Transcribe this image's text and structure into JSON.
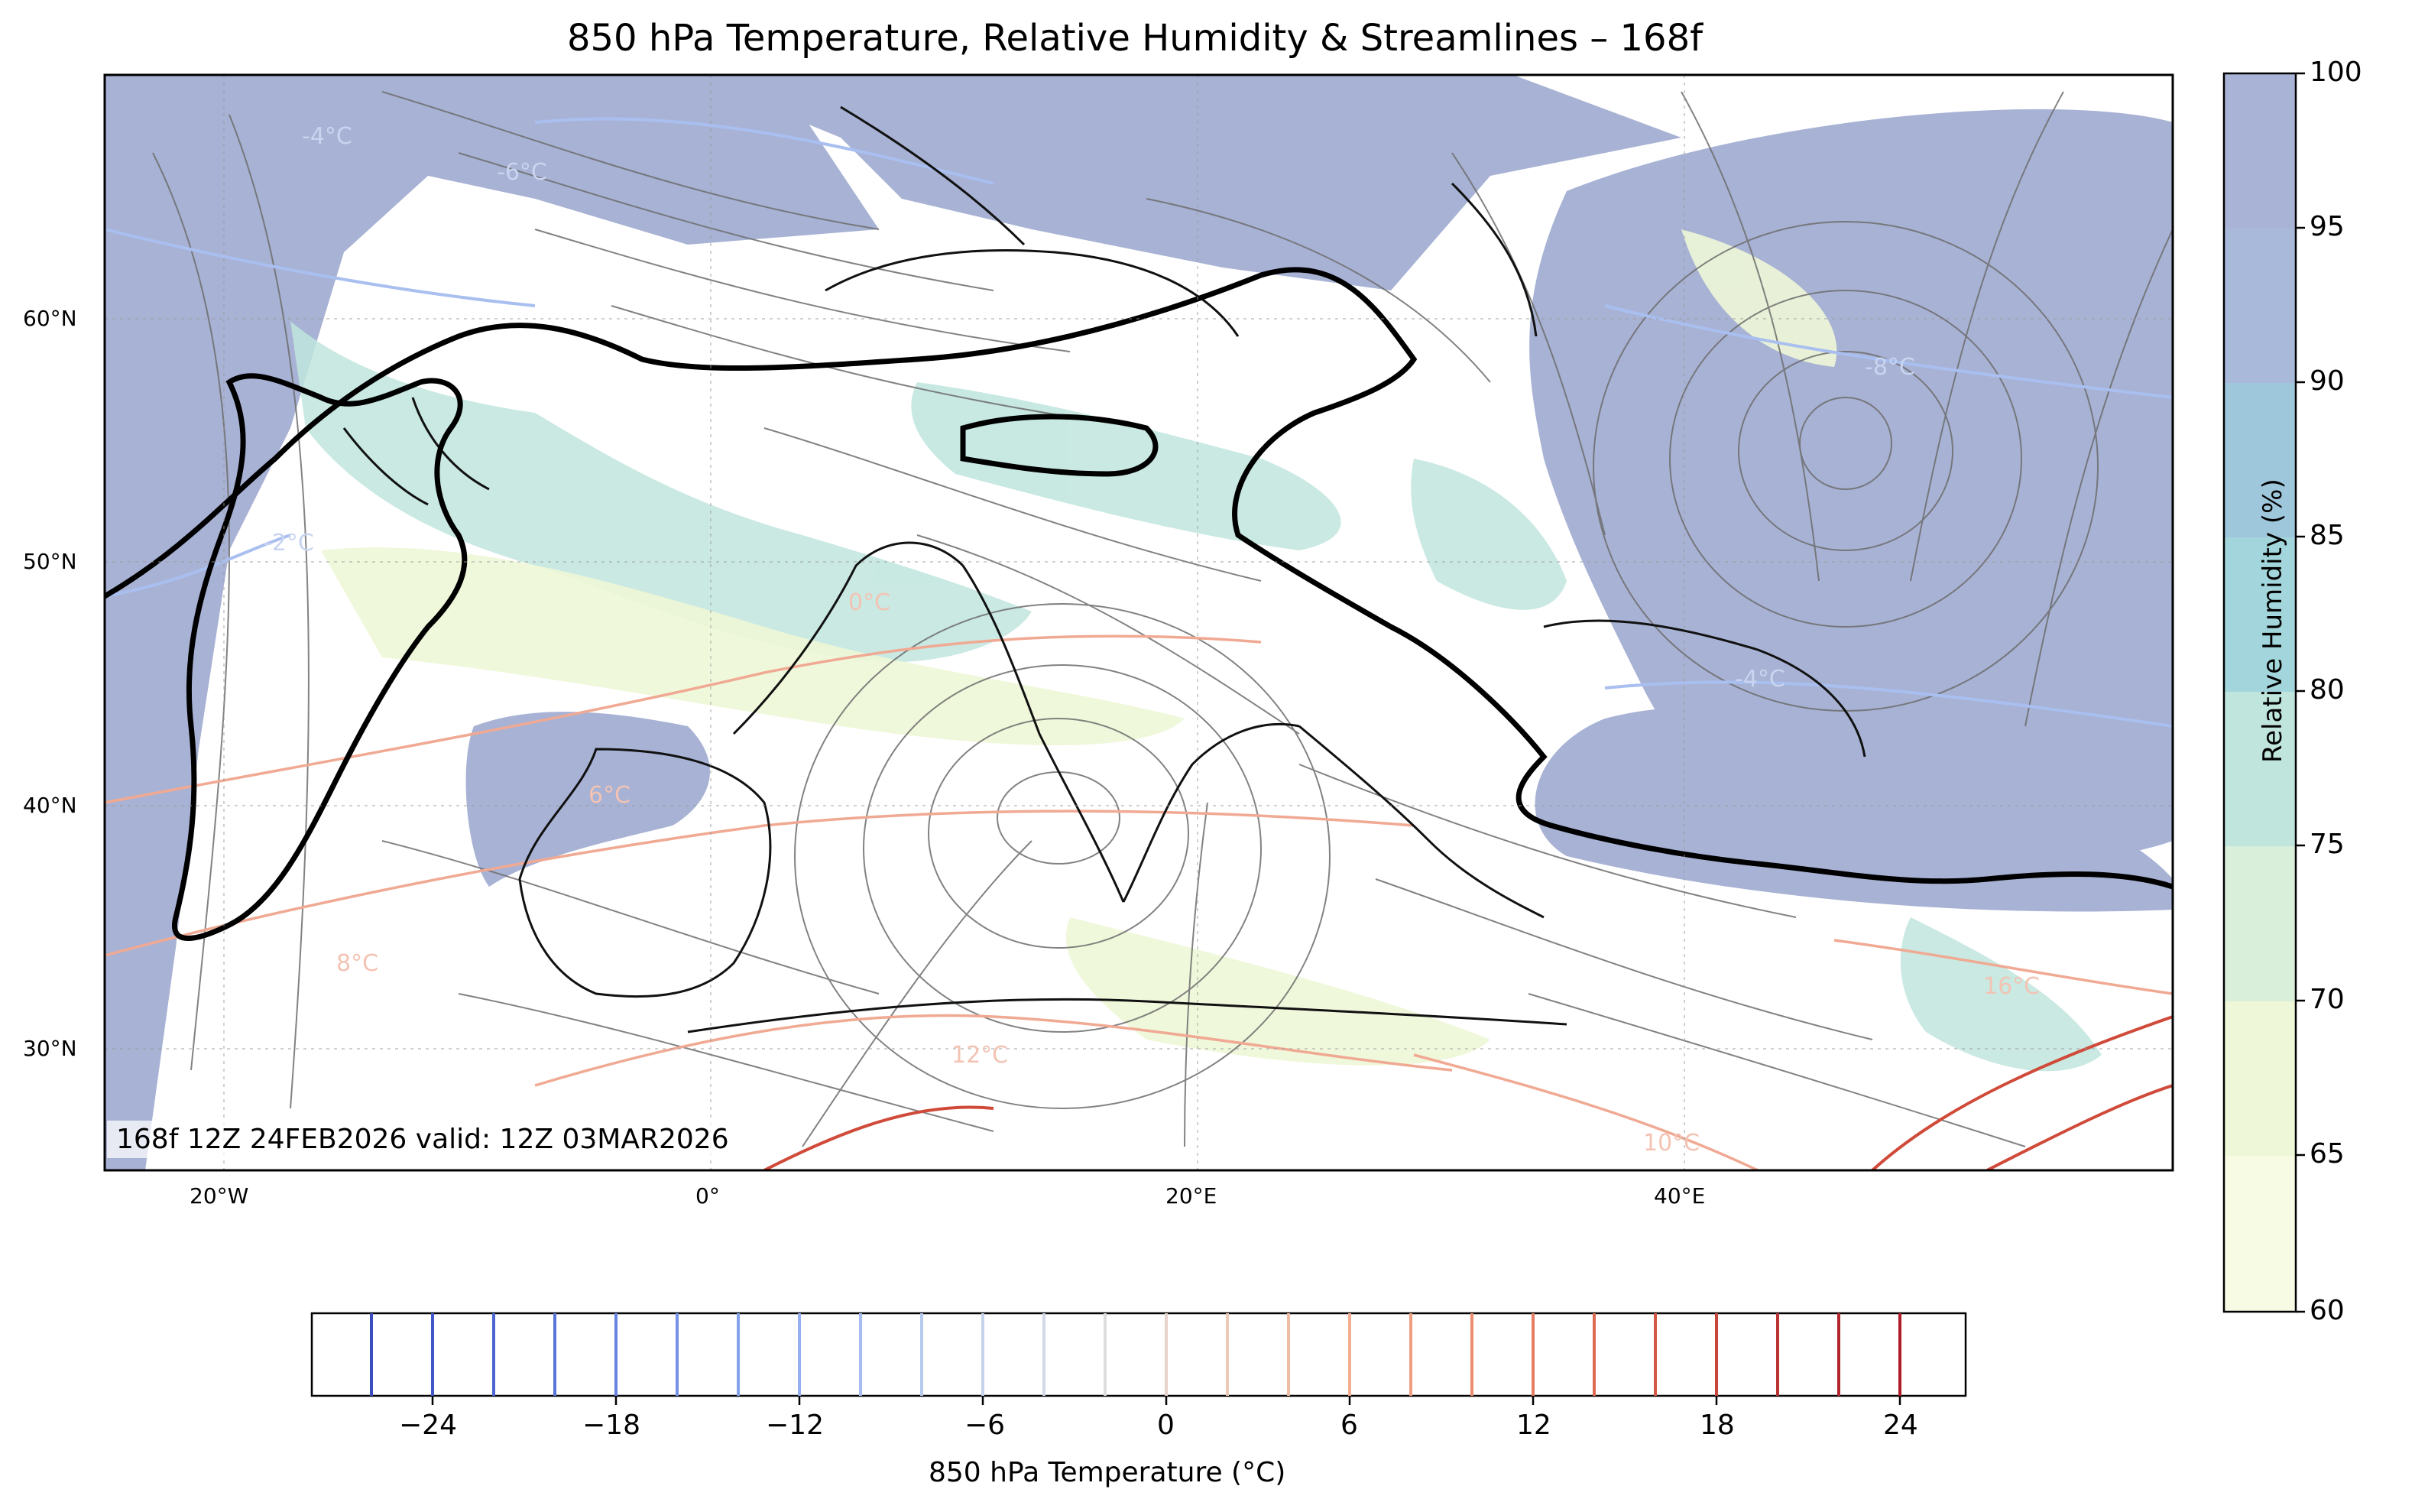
{
  "title": "850 hPa Temperature, Relative Humidity & Streamlines – 168f",
  "valid_text": "168f 12Z 24FEB2026 valid: 12Z 03MAR2026",
  "map": {
    "lon_labels": [
      "20°W",
      "0°",
      "20°E",
      "40°E"
    ],
    "lat_labels": [
      "60°N",
      "50°N",
      "40°N",
      "30°N"
    ],
    "contour_labels": [
      "-4°C",
      "-6°C",
      "-8°C",
      "-2°C",
      "-4°C",
      "0°C",
      "6°C",
      "8°C",
      "10°C",
      "12°C",
      "16°C"
    ]
  },
  "rh_colorbar": {
    "label": "Relative Humidity (%)",
    "ticks": [
      "100",
      "95",
      "90",
      "85",
      "80",
      "75",
      "70",
      "65",
      "60"
    ],
    "band_colors": [
      "#f7fbe4",
      "#eef7d7",
      "#d9efd9",
      "#bfe5dd",
      "#a3d6dc",
      "#9fc7dc",
      "#a8b9da",
      "#a8b3d6"
    ]
  },
  "temp_colorbar": {
    "label": "850 hPa Temperature (°C)",
    "ticks": [
      "−24",
      "−18",
      "−12",
      "−6",
      "0",
      "6",
      "12",
      "18",
      "24"
    ]
  },
  "colors": {
    "cold": "#4a5fd0",
    "warm": "#c0392b",
    "rh_high": "#a3aed2",
    "streamline": "#6d6d6d"
  }
}
